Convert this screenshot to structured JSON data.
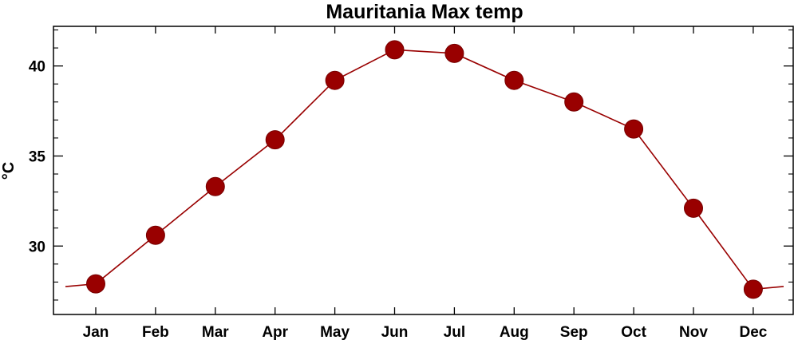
{
  "chart_data": {
    "type": "line",
    "title": "Mauritania Max temp",
    "xlabel": "",
    "ylabel": "°C",
    "categories": [
      "Jan",
      "Feb",
      "Mar",
      "Apr",
      "May",
      "Jun",
      "Jul",
      "Aug",
      "Sep",
      "Oct",
      "Nov",
      "Dec"
    ],
    "series": [
      {
        "values": [
          27.9,
          30.6,
          33.3,
          35.9,
          39.2,
          40.9,
          40.7,
          39.2,
          38.0,
          36.5,
          32.1,
          27.6
        ],
        "color": "#990000"
      }
    ],
    "y_ticks": [
      30,
      35,
      40
    ],
    "y_tick_labels": [
      "30",
      "35",
      "40"
    ],
    "ylim": [
      26.2,
      42.2
    ],
    "grid": false,
    "marker": "circle",
    "line_wraps_beyond_edges": true
  }
}
